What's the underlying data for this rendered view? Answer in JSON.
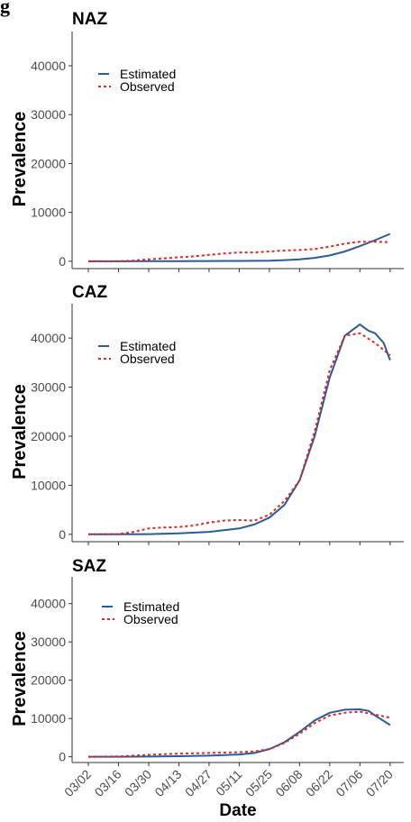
{
  "figure_label": "g",
  "chart_data": {
    "type": "line",
    "xlabel": "Date",
    "ylabel": "Prevalence",
    "x_ticks": [
      "03/02",
      "03/16",
      "03/30",
      "04/13",
      "04/27",
      "05/11",
      "05/25",
      "06/08",
      "06/22",
      "07/06",
      "07/20"
    ],
    "x_range_days": [
      0,
      143
    ],
    "y_ticks": [
      0,
      10000,
      20000,
      30000,
      40000
    ],
    "ylim": [
      -1500,
      47000
    ],
    "grid": false,
    "legend_placement": "top-left",
    "colors": {
      "estimated": "#2a5b9a",
      "observed": "#e8241c"
    },
    "panels": [
      {
        "title": "NAZ",
        "series": [
          {
            "name": "Estimated",
            "x": [
              0,
              14,
              28,
              42,
              56,
              70,
              84,
              91,
              98,
              105,
              112,
              119,
              126,
              133,
              140
            ],
            "y": [
              0,
              0,
              10,
              20,
              40,
              70,
              130,
              230,
              400,
              700,
              1200,
              2000,
              3100,
              4300,
              5600
            ]
          },
          {
            "name": "Observed",
            "x": [
              0,
              14,
              21,
              28,
              35,
              42,
              49,
              56,
              63,
              70,
              77,
              84,
              91,
              98,
              105,
              112,
              119,
              126,
              133,
              140
            ],
            "y": [
              0,
              20,
              150,
              400,
              600,
              800,
              1000,
              1300,
              1600,
              1800,
              1800,
              2000,
              2200,
              2300,
              2500,
              3000,
              3600,
              4000,
              4000,
              3900
            ]
          }
        ]
      },
      {
        "title": "CAZ",
        "series": [
          {
            "name": "Estimated",
            "x": [
              0,
              14,
              28,
              42,
              56,
              70,
              77,
              84,
              91,
              98,
              105,
              112,
              119,
              126,
              130,
              133,
              137,
              140
            ],
            "y": [
              0,
              0,
              50,
              200,
              500,
              1200,
              2000,
              3400,
              6000,
              11000,
              20000,
              32000,
              40500,
              42800,
              41500,
              41000,
              39000,
              35500
            ]
          },
          {
            "name": "Observed",
            "x": [
              0,
              14,
              21,
              28,
              35,
              42,
              49,
              56,
              63,
              70,
              77,
              84,
              91,
              98,
              105,
              112,
              119,
              126,
              133,
              140
            ],
            "y": [
              0,
              50,
              500,
              1200,
              1400,
              1500,
              1800,
              2400,
              2800,
              2900,
              2800,
              4000,
              6800,
              11000,
              21000,
              33500,
              40500,
              41000,
              39000,
              36500
            ]
          }
        ]
      },
      {
        "title": "SAZ",
        "series": [
          {
            "name": "Estimated",
            "x": [
              0,
              14,
              28,
              42,
              56,
              70,
              77,
              84,
              91,
              98,
              105,
              112,
              119,
              126,
              130,
              133,
              140
            ],
            "y": [
              0,
              0,
              50,
              150,
              300,
              600,
              1000,
              2000,
              3800,
              6500,
              9500,
              11500,
              12300,
              12400,
              12000,
              10800,
              8300
            ]
          },
          {
            "name": "Observed",
            "x": [
              0,
              14,
              21,
              28,
              35,
              42,
              49,
              56,
              63,
              70,
              77,
              84,
              91,
              98,
              105,
              112,
              119,
              126,
              133,
              140
            ],
            "y": [
              0,
              100,
              300,
              500,
              700,
              800,
              900,
              1000,
              1100,
              1200,
              1400,
              2000,
              3600,
              6000,
              8800,
              10800,
              11500,
              11800,
              11000,
              10200
            ]
          }
        ]
      }
    ]
  }
}
